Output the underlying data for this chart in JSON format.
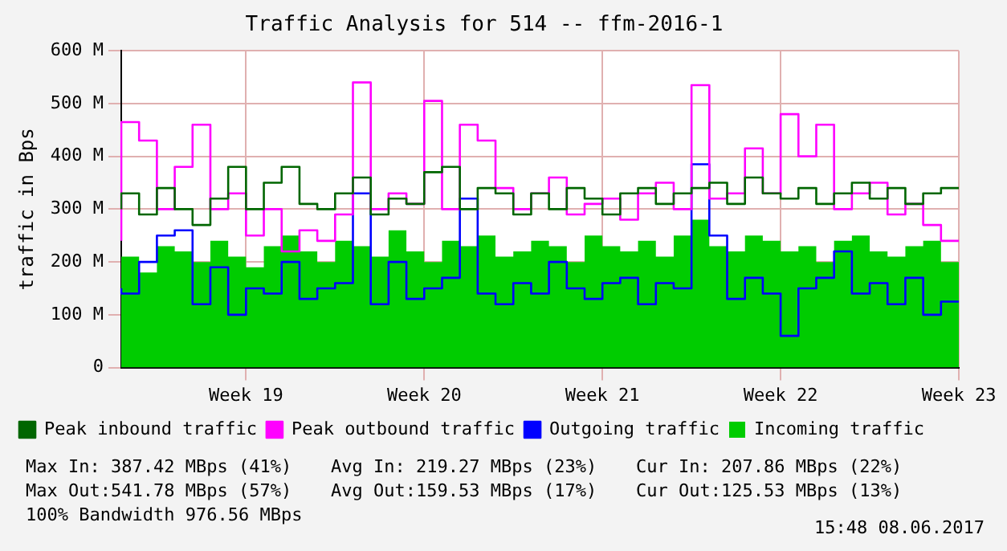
{
  "chart_data": {
    "type": "step",
    "title": "Traffic Analysis for 514 -- ffm-2016-1",
    "ylabel": "traffic in Bps",
    "categories": [
      null,
      null,
      null,
      null,
      null,
      null,
      null,
      "Week 19",
      null,
      null,
      null,
      null,
      null,
      null,
      null,
      null,
      null,
      "Week 20",
      null,
      null,
      null,
      null,
      null,
      null,
      null,
      null,
      null,
      "Week 21",
      null,
      null,
      null,
      null,
      null,
      null,
      null,
      null,
      null,
      "Week 22",
      null,
      null,
      null,
      null,
      null,
      null,
      null,
      null,
      null,
      "Week 23"
    ],
    "series": [
      {
        "name": "Peak inbound traffic",
        "color": "#006600",
        "values": [
          300,
          330,
          290,
          340,
          300,
          270,
          320,
          380,
          300,
          350,
          380,
          310,
          300,
          330,
          360,
          290,
          320,
          310,
          370,
          380,
          300,
          340,
          330,
          290,
          330,
          300,
          340,
          320,
          290,
          330,
          340,
          310,
          330,
          340,
          350,
          310,
          360,
          330,
          320,
          340,
          310,
          330,
          350,
          320,
          340,
          310,
          330,
          340
        ]
      },
      {
        "name": "Incoming traffic",
        "type": "area",
        "color": "#00cc00",
        "values": [
          200,
          210,
          180,
          230,
          220,
          200,
          240,
          210,
          190,
          230,
          250,
          220,
          200,
          240,
          230,
          210,
          260,
          220,
          200,
          240,
          230,
          250,
          210,
          220,
          240,
          230,
          200,
          250,
          230,
          220,
          240,
          210,
          250,
          280,
          230,
          220,
          250,
          240,
          220,
          230,
          200,
          240,
          250,
          220,
          210,
          230,
          240,
          200
        ]
      },
      {
        "name": "Peak outbound traffic",
        "color": "#ff00ff",
        "values": [
          240,
          465,
          430,
          300,
          380,
          460,
          300,
          330,
          250,
          300,
          220,
          260,
          240,
          290,
          540,
          300,
          330,
          310,
          505,
          300,
          460,
          430,
          340,
          300,
          330,
          360,
          290,
          310,
          320,
          280,
          330,
          350,
          300,
          535,
          320,
          330,
          415,
          330,
          480,
          400,
          460,
          300,
          330,
          350,
          290,
          310,
          270,
          240
        ]
      },
      {
        "name": "Outgoing traffic",
        "color": "#0000ff",
        "values": [
          150,
          140,
          200,
          250,
          260,
          120,
          190,
          100,
          150,
          140,
          200,
          130,
          150,
          160,
          330,
          120,
          200,
          130,
          150,
          170,
          320,
          140,
          120,
          160,
          140,
          200,
          150,
          130,
          160,
          170,
          120,
          160,
          150,
          385,
          250,
          130,
          170,
          140,
          60,
          150,
          170,
          220,
          140,
          160,
          120,
          170,
          100,
          125
        ]
      }
    ],
    "ylim": [
      0,
      600
    ],
    "yticks": [
      0,
      {
        "value": 100,
        "label": "100 M"
      },
      {
        "value": 200,
        "label": "200 M"
      },
      {
        "value": 300,
        "label": "300 M"
      },
      {
        "value": 400,
        "label": "400 M"
      },
      {
        "value": 500,
        "label": "500 M"
      },
      {
        "value": 600,
        "label": "600 M"
      }
    ],
    "grid": true,
    "legend": "bottom left",
    "marker": "none",
    "line_style": "solid",
    "annotations": [
      "Max In: 387.42 MBps (41%)",
      "Avg In: 219.27 MBps (23%)",
      "Cur In: 207.86 MBps (22%)",
      "Max Out:541.78 MBps (57%)",
      "Avg Out:159.53 MBps (17%)",
      "Cur Out:125.53 MBps (13%)",
      "100% Bandwidth 976.56 MBps",
      "15:48 08.06.2017"
    ]
  }
}
